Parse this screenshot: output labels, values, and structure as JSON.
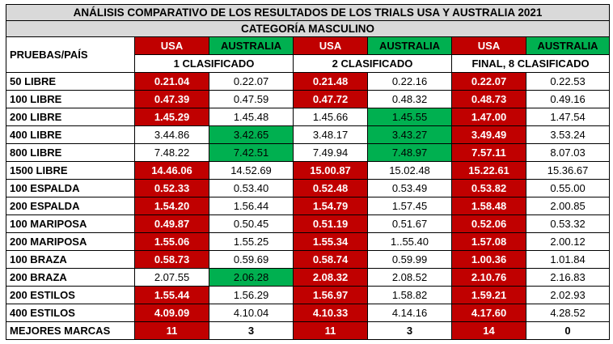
{
  "title1": "ANÁLISIS COMPARATIVO  DE LOS RESULTADOS  DE LOS TRIALS USA Y AUSTRALIA  2021",
  "title2": "CATEGORÍA MASCULINO",
  "corner_label": "PRUEBAS/PAÍS",
  "country_usa": "USA",
  "country_aus": "AUSTRALIA",
  "phases": [
    "1 CLASIFICADO",
    "2 CLASIFICADO",
    "FINAL, 8 CLASIFICADO"
  ],
  "colors": {
    "usa": "#c00000",
    "australia": "#00b050",
    "title_bg": "#d9d9d9"
  },
  "rows": [
    {
      "event": "50 LIBRE",
      "cells": [
        [
          "0.21.04",
          "r"
        ],
        [
          "0.22.07",
          "w"
        ],
        [
          "0.21.48",
          "r"
        ],
        [
          "0.22.16",
          "w"
        ],
        [
          "0.22.07",
          "r"
        ],
        [
          "0.22.53",
          "w"
        ]
      ]
    },
    {
      "event": "100 LIBRE",
      "cells": [
        [
          "0.47.39",
          "r"
        ],
        [
          "0.47.59",
          "w"
        ],
        [
          "0.47.72",
          "r"
        ],
        [
          "0.48.32",
          "w"
        ],
        [
          "0.48.73",
          "r"
        ],
        [
          "0.49.16",
          "w"
        ]
      ]
    },
    {
      "event": "200 LIBRE",
      "cells": [
        [
          "1.45.29",
          "r"
        ],
        [
          "1.45.48",
          "w"
        ],
        [
          "1.45.66",
          "w"
        ],
        [
          "1.45.55",
          "g"
        ],
        [
          "1.47.00",
          "r"
        ],
        [
          "1.47.54",
          "w"
        ]
      ]
    },
    {
      "event": "400 LIBRE",
      "cells": [
        [
          "3.44.86",
          "w"
        ],
        [
          "3.42.65",
          "g"
        ],
        [
          "3.48.17",
          "w"
        ],
        [
          "3.43.27",
          "g"
        ],
        [
          "3.49.49",
          "r"
        ],
        [
          "3.53.24",
          "w"
        ]
      ]
    },
    {
      "event": "800 LIBRE",
      "cells": [
        [
          "7.48.22",
          "w"
        ],
        [
          "7.42.51",
          "g"
        ],
        [
          "7.49.94",
          "w"
        ],
        [
          "7.48.97",
          "g"
        ],
        [
          "7.57.11",
          "r"
        ],
        [
          "8.07.03",
          "w"
        ]
      ]
    },
    {
      "event": "1500 LIBRE",
      "cells": [
        [
          "14.46.06",
          "r"
        ],
        [
          "14.52.69",
          "w"
        ],
        [
          "15.00.87",
          "r"
        ],
        [
          "15.02.48",
          "w"
        ],
        [
          "15.22.61",
          "r"
        ],
        [
          "15.36.67",
          "w"
        ]
      ]
    },
    {
      "event": "100 ESPALDA",
      "cells": [
        [
          "0.52.33",
          "r"
        ],
        [
          "0.53.40",
          "w"
        ],
        [
          "0.52.48",
          "r"
        ],
        [
          "0.53.49",
          "w"
        ],
        [
          "0.53.82",
          "r"
        ],
        [
          "0.55.00",
          "w"
        ]
      ]
    },
    {
      "event": "200 ESPALDA",
      "cells": [
        [
          "1.54.20",
          "r"
        ],
        [
          "1.56.44",
          "w"
        ],
        [
          "1.54.79",
          "r"
        ],
        [
          "1.57.45",
          "w"
        ],
        [
          "1.58.48",
          "r"
        ],
        [
          "2.00.85",
          "w"
        ]
      ]
    },
    {
      "event": "100 MARIPOSA",
      "cells": [
        [
          "0.49.87",
          "r"
        ],
        [
          "0.50.45",
          "w"
        ],
        [
          "0.51.19",
          "r"
        ],
        [
          "0.51.67",
          "w"
        ],
        [
          "0.52.06",
          "r"
        ],
        [
          "0.53.32",
          "w"
        ]
      ]
    },
    {
      "event": "200 MARIPOSA",
      "cells": [
        [
          "1.55.06",
          "r"
        ],
        [
          "1.55.25",
          "w"
        ],
        [
          "1.55.34",
          "r"
        ],
        [
          "1..55.40",
          "w"
        ],
        [
          "1.57.08",
          "r"
        ],
        [
          "2.00.12",
          "w"
        ]
      ]
    },
    {
      "event": "100 BRAZA",
      "cells": [
        [
          "0.58.73",
          "r"
        ],
        [
          "0.59.69",
          "w"
        ],
        [
          "0.58.74",
          "r"
        ],
        [
          "0.59.99",
          "w"
        ],
        [
          "1.00.36",
          "r"
        ],
        [
          "1.01.84",
          "w"
        ]
      ]
    },
    {
      "event": "200 BRAZA",
      "cells": [
        [
          "2.07.55",
          "w"
        ],
        [
          "2.06.28",
          "g"
        ],
        [
          "2.08.32",
          "r"
        ],
        [
          "2.08.52",
          "w"
        ],
        [
          "2.10.76",
          "r"
        ],
        [
          "2.16.83",
          "w"
        ]
      ]
    },
    {
      "event": "200 ESTILOS",
      "cells": [
        [
          "1.55.44",
          "r"
        ],
        [
          "1.56.29",
          "w"
        ],
        [
          "1.56.97",
          "r"
        ],
        [
          "1.58.82",
          "w"
        ],
        [
          "1.59.21",
          "r"
        ],
        [
          "2.02.93",
          "w"
        ]
      ]
    },
    {
      "event": "400 ESTILOS",
      "cells": [
        [
          "4.09.09",
          "r"
        ],
        [
          "4.10.04",
          "w"
        ],
        [
          "4.10.33",
          "r"
        ],
        [
          "4.14.16",
          "w"
        ],
        [
          "4.17.60",
          "r"
        ],
        [
          "4.28.52",
          "w"
        ]
      ]
    }
  ],
  "totals": {
    "label": "MEJORES MARCAS",
    "values": [
      "11",
      "3",
      "11",
      "3",
      "14",
      "0"
    ]
  }
}
